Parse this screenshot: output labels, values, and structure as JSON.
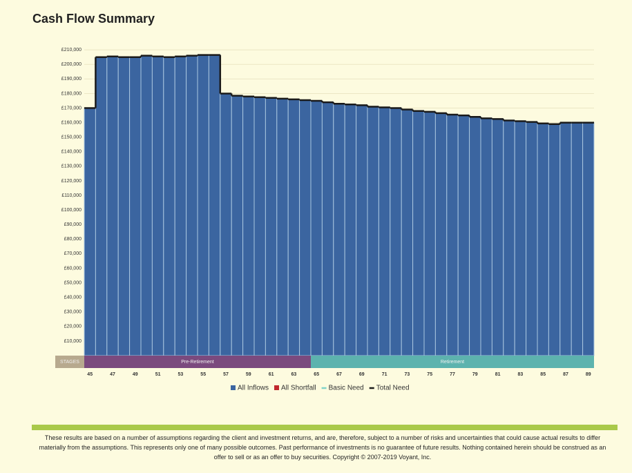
{
  "chart_data": {
    "type": "bar",
    "title": "Cash Flow Summary",
    "categories": [
      "45",
      null,
      "47",
      null,
      "49",
      null,
      "51",
      null,
      "53",
      null,
      "55",
      null,
      "57",
      null,
      "59",
      null,
      "61",
      null,
      "63",
      null,
      "65",
      null,
      "67",
      null,
      "69",
      null,
      "71",
      null,
      "73",
      null,
      "75",
      null,
      "77",
      null,
      "79",
      null,
      "81",
      null,
      "83",
      null,
      "85",
      null,
      "87",
      null,
      "89"
    ],
    "series": [
      {
        "name": "All Inflows",
        "color": "#3b65a0",
        "values": [
          170000,
          205000,
          205500,
          205000,
          205000,
          206000,
          205500,
          205000,
          205500,
          206000,
          206500,
          206500,
          180000,
          178500,
          178000,
          177500,
          177000,
          176500,
          176000,
          175500,
          175000,
          174000,
          173000,
          172500,
          172000,
          171000,
          170500,
          170000,
          169000,
          168000,
          167500,
          166500,
          165500,
          165000,
          164000,
          163000,
          162500,
          161500,
          161000,
          160500,
          159500,
          159000,
          160000,
          160000,
          160000
        ]
      },
      {
        "name": "All Shortfall",
        "color": "#c0282d"
      },
      {
        "name": "Basic Need",
        "color": "#7fd3c8"
      },
      {
        "name": "Total Need",
        "color": "#1a1a1a",
        "values": [
          170000,
          205000,
          205500,
          205000,
          205000,
          206000,
          205500,
          205000,
          205500,
          206000,
          206500,
          206500,
          180000,
          178500,
          178000,
          177500,
          177000,
          176500,
          176000,
          175500,
          175000,
          174000,
          173000,
          172500,
          172000,
          171000,
          170500,
          170000,
          169000,
          168000,
          167500,
          166500,
          165500,
          165000,
          164000,
          163000,
          162500,
          161500,
          161000,
          160500,
          159500,
          159000,
          160000,
          160000,
          160000
        ]
      }
    ],
    "ylim": [
      0,
      212000
    ],
    "yticks": [
      {
        "value": 10000,
        "label": "£10,000"
      },
      {
        "value": 20000,
        "label": "£20,000"
      },
      {
        "value": 30000,
        "label": "£30,000"
      },
      {
        "value": 40000,
        "label": "£40,000"
      },
      {
        "value": 50000,
        "label": "£50,000"
      },
      {
        "value": 60000,
        "label": "£60,000"
      },
      {
        "value": 70000,
        "label": "£70,000"
      },
      {
        "value": 80000,
        "label": "£80,000"
      },
      {
        "value": 90000,
        "label": "£90,000"
      },
      {
        "value": 100000,
        "label": "£100,000"
      },
      {
        "value": 110000,
        "label": "£110,000"
      },
      {
        "value": 120000,
        "label": "£120,000"
      },
      {
        "value": 130000,
        "label": "£130,000"
      },
      {
        "value": 140000,
        "label": "£140,000"
      },
      {
        "value": 150000,
        "label": "£150,000"
      },
      {
        "value": 160000,
        "label": "£160,000"
      },
      {
        "value": 170000,
        "label": "£170,000"
      },
      {
        "value": 180000,
        "label": "£180,000"
      },
      {
        "value": 190000,
        "label": "£190,000"
      },
      {
        "value": 200000,
        "label": "£200,000"
      },
      {
        "value": 210000,
        "label": "£210,000"
      }
    ],
    "grid": true,
    "stages": {
      "title": "STAGES",
      "items": [
        {
          "label": "Pre-Retirement",
          "from": "45",
          "color": "#7b4a7e"
        },
        {
          "label": "Retirement",
          "from": "65",
          "color": "#5db3ae"
        }
      ]
    },
    "disclaimer": "These results are based on a number of assumptions regarding the client and investment returns, and are, therefore, subject to a number of risks and uncertainties that could cause actual results to differ materially from the assumptions. This represents only one of many possible outcomes. Past performance of investments is no guarantee of future results. Nothing contained herein should be construed as an offer to sell or as an offer to buy securities. Copyright © 2007-2019 Voyant, Inc."
  }
}
